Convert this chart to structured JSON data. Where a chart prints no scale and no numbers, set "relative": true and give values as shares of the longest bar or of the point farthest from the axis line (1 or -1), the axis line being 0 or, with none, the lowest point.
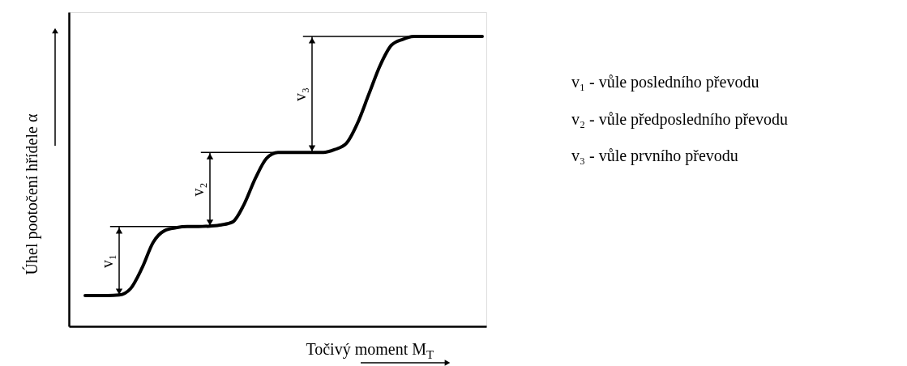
{
  "chart_data": {
    "type": "line",
    "relative": true,
    "categories": [
      null,
      null,
      null,
      null,
      null,
      null,
      null,
      null,
      null,
      null,
      null,
      null,
      null,
      null,
      null,
      null,
      null,
      null,
      null,
      null,
      null,
      null,
      null,
      null,
      null,
      null,
      null,
      null,
      null,
      null,
      null,
      null,
      null,
      null,
      null,
      null
    ],
    "series": [
      {
        "color": "#000000",
        "values": [
          0.106,
          0.106,
          0.106,
          0.108,
          0.13,
          0.2,
          0.29,
          0.33,
          0.34,
          0.344,
          0.344,
          0.346,
          0.35,
          0.36,
          0.42,
          0.51,
          0.58,
          0.6,
          0.6,
          0.6,
          0.6,
          0.6,
          0.61,
          0.63,
          0.7,
          0.8,
          0.9,
          0.97,
          0.99,
          1,
          1,
          1,
          1,
          1,
          1,
          1
        ]
      }
    ],
    "xlabel": "Točivý moment M$_{T}$",
    "ylabel": "Úhel pootočení hřídele α",
    "annotations": [
      "v₁",
      "v₂",
      "v₃",
      "v₁ - vůle posledního převodu",
      "v₂ - vůle předposledního převodu",
      "v₃ - vůle prvního převodu"
    ],
    "marker": "none",
    "line_style": "solid",
    "tick_labels": false,
    "grid": false,
    "legend": false
  }
}
